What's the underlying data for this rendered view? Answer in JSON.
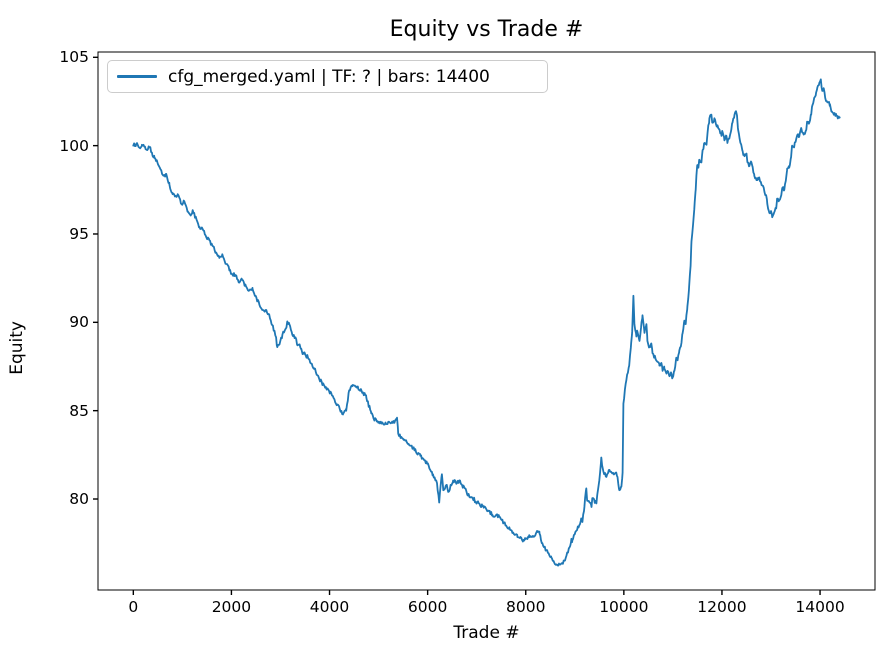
{
  "figure": {
    "background": "#ffffff",
    "text_color": "#000000",
    "spine_color": "#000000"
  },
  "chart_data": {
    "type": "line",
    "title": "Equity vs Trade #",
    "xlabel": "Trade #",
    "ylabel": "Equity",
    "grid": false,
    "xlim": [
      -720,
      15120
    ],
    "ylim": [
      74.85,
      105.3
    ],
    "xticks": [
      0,
      2000,
      4000,
      6000,
      8000,
      10000,
      12000,
      14000
    ],
    "yticks": [
      105,
      100,
      95,
      90,
      85,
      80
    ],
    "legend": {
      "position": "upper left",
      "entries": [
        {
          "label": "cfg_merged.yaml | TF: ? | bars: 14400",
          "color": "#1f77b4"
        }
      ]
    },
    "series": [
      {
        "name": "cfg_merged.yaml | TF: ? | bars: 14400",
        "color": "#1f77b4",
        "x_start": 0,
        "x_end": 14400,
        "equity_start": 100.0,
        "equity_end": 101.6,
        "equity_min": 76.25,
        "equity_max": 103.75,
        "points": [
          [
            0,
            100.0
          ],
          [
            60,
            100.1
          ],
          [
            140,
            99.85
          ],
          [
            175,
            100.05
          ],
          [
            250,
            99.8
          ],
          [
            330,
            99.9
          ],
          [
            430,
            99.3
          ],
          [
            490,
            99.05
          ],
          [
            570,
            98.6
          ],
          [
            615,
            98.3
          ],
          [
            670,
            98.4
          ],
          [
            735,
            97.8
          ],
          [
            800,
            97.25
          ],
          [
            880,
            97.1
          ],
          [
            905,
            97.25
          ],
          [
            980,
            96.7
          ],
          [
            1040,
            96.85
          ],
          [
            1105,
            96.3
          ],
          [
            1180,
            96.1
          ],
          [
            1210,
            96.35
          ],
          [
            1290,
            95.8
          ],
          [
            1350,
            95.4
          ],
          [
            1410,
            95.3
          ],
          [
            1490,
            94.8
          ],
          [
            1550,
            94.65
          ],
          [
            1610,
            94.35
          ],
          [
            1690,
            93.95
          ],
          [
            1755,
            93.7
          ],
          [
            1815,
            93.85
          ],
          [
            1895,
            93.3
          ],
          [
            1960,
            93.0
          ],
          [
            2020,
            92.7
          ],
          [
            2100,
            92.65
          ],
          [
            2160,
            92.25
          ],
          [
            2220,
            92.4
          ],
          [
            2305,
            92.0
          ],
          [
            2365,
            91.8
          ],
          [
            2430,
            91.9
          ],
          [
            2510,
            91.4
          ],
          [
            2570,
            91.0
          ],
          [
            2630,
            90.7
          ],
          [
            2710,
            90.7
          ],
          [
            2770,
            90.45
          ],
          [
            2830,
            89.85
          ],
          [
            2910,
            89.15
          ],
          [
            2935,
            88.6
          ],
          [
            2980,
            88.75
          ],
          [
            3040,
            89.3
          ],
          [
            3120,
            89.7
          ],
          [
            3140,
            90.05
          ],
          [
            3180,
            89.9
          ],
          [
            3240,
            89.3
          ],
          [
            3320,
            89.05
          ],
          [
            3345,
            88.7
          ],
          [
            3390,
            88.75
          ],
          [
            3425,
            88.5
          ],
          [
            3450,
            88.2
          ],
          [
            3490,
            88.3
          ],
          [
            3530,
            88.0
          ],
          [
            3550,
            88.1
          ],
          [
            3590,
            87.9
          ],
          [
            3690,
            87.4
          ],
          [
            3790,
            86.8
          ],
          [
            3855,
            86.55
          ],
          [
            3910,
            86.3
          ],
          [
            4035,
            86.0
          ],
          [
            4130,
            85.4
          ],
          [
            4275,
            84.85
          ],
          [
            4340,
            85.0
          ],
          [
            4400,
            86.15
          ],
          [
            4470,
            86.45
          ],
          [
            4560,
            86.3
          ],
          [
            4650,
            86.15
          ],
          [
            4750,
            85.75
          ],
          [
            4850,
            84.85
          ],
          [
            4915,
            84.5
          ],
          [
            5030,
            84.35
          ],
          [
            5150,
            84.25
          ],
          [
            5290,
            84.3
          ],
          [
            5375,
            84.6
          ],
          [
            5400,
            83.7
          ],
          [
            5480,
            83.45
          ],
          [
            5580,
            83.2
          ],
          [
            5700,
            82.9
          ],
          [
            5850,
            82.45
          ],
          [
            5990,
            82.0
          ],
          [
            6110,
            81.4
          ],
          [
            6190,
            80.9
          ],
          [
            6235,
            79.8
          ],
          [
            6290,
            81.4
          ],
          [
            6320,
            80.5
          ],
          [
            6390,
            80.8
          ],
          [
            6420,
            80.4
          ],
          [
            6520,
            81.05
          ],
          [
            6600,
            80.9
          ],
          [
            6660,
            81.05
          ],
          [
            6700,
            80.8
          ],
          [
            6760,
            80.6
          ],
          [
            6820,
            80.2
          ],
          [
            6900,
            80.1
          ],
          [
            7010,
            79.8
          ],
          [
            7110,
            79.6
          ],
          [
            7200,
            79.4
          ],
          [
            7320,
            79.1
          ],
          [
            7460,
            79.0
          ],
          [
            7600,
            78.5
          ],
          [
            7665,
            78.4
          ],
          [
            7830,
            77.85
          ],
          [
            7970,
            77.65
          ],
          [
            8070,
            77.95
          ],
          [
            8130,
            77.85
          ],
          [
            8215,
            78.1
          ],
          [
            8280,
            78.05
          ],
          [
            8340,
            77.5
          ],
          [
            8420,
            77.1
          ],
          [
            8520,
            76.7
          ],
          [
            8580,
            76.4
          ],
          [
            8645,
            76.25
          ],
          [
            8725,
            76.35
          ],
          [
            8785,
            76.5
          ],
          [
            8830,
            76.8
          ],
          [
            8890,
            77.25
          ],
          [
            8930,
            77.75
          ],
          [
            8950,
            77.65
          ],
          [
            9030,
            78.2
          ],
          [
            9090,
            78.5
          ],
          [
            9130,
            78.9
          ],
          [
            9155,
            78.7
          ],
          [
            9195,
            79.55
          ],
          [
            9235,
            80.6
          ],
          [
            9255,
            79.9
          ],
          [
            9300,
            79.8
          ],
          [
            9340,
            79.55
          ],
          [
            9360,
            80.05
          ],
          [
            9440,
            79.75
          ],
          [
            9460,
            80.3
          ],
          [
            9500,
            81.05
          ],
          [
            9540,
            82.35
          ],
          [
            9565,
            81.8
          ],
          [
            9600,
            81.45
          ],
          [
            9645,
            81.25
          ],
          [
            9705,
            81.65
          ],
          [
            9765,
            81.45
          ],
          [
            9845,
            81.5
          ],
          [
            9870,
            81.25
          ],
          [
            9910,
            80.5
          ],
          [
            9950,
            80.7
          ],
          [
            9975,
            81.5
          ],
          [
            9990,
            85.4
          ],
          [
            10050,
            86.7
          ],
          [
            10110,
            87.55
          ],
          [
            10150,
            88.85
          ],
          [
            10170,
            89.5
          ],
          [
            10195,
            91.5
          ],
          [
            10215,
            89.9
          ],
          [
            10255,
            89.2
          ],
          [
            10275,
            89.5
          ],
          [
            10320,
            88.95
          ],
          [
            10360,
            90.0
          ],
          [
            10380,
            90.4
          ],
          [
            10420,
            89.4
          ],
          [
            10460,
            89.9
          ],
          [
            10480,
            88.95
          ],
          [
            10520,
            88.6
          ],
          [
            10560,
            88.8
          ],
          [
            10585,
            88.25
          ],
          [
            10660,
            87.85
          ],
          [
            10725,
            87.55
          ],
          [
            10765,
            87.7
          ],
          [
            10790,
            87.25
          ],
          [
            10825,
            87.4
          ],
          [
            10870,
            87.1
          ],
          [
            10890,
            87.25
          ],
          [
            10930,
            86.95
          ],
          [
            10970,
            87.1
          ],
          [
            10990,
            86.85
          ],
          [
            11030,
            87.25
          ],
          [
            11070,
            88.0
          ],
          [
            11095,
            87.85
          ],
          [
            11130,
            88.4
          ],
          [
            11175,
            88.85
          ],
          [
            11195,
            89.35
          ],
          [
            11235,
            90.1
          ],
          [
            11260,
            89.9
          ],
          [
            11295,
            90.9
          ],
          [
            11330,
            92.0
          ],
          [
            11360,
            93.2
          ],
          [
            11380,
            94.6
          ],
          [
            11420,
            95.85
          ],
          [
            11445,
            96.8
          ],
          [
            11465,
            97.5
          ],
          [
            11480,
            98.3
          ],
          [
            11500,
            98.9
          ],
          [
            11520,
            98.75
          ],
          [
            11540,
            99.2
          ],
          [
            11580,
            99.05
          ],
          [
            11605,
            99.75
          ],
          [
            11645,
            100.15
          ],
          [
            11685,
            100.05
          ],
          [
            11705,
            100.7
          ],
          [
            11745,
            101.55
          ],
          [
            11785,
            101.75
          ],
          [
            11805,
            101.3
          ],
          [
            11845,
            101.55
          ],
          [
            11890,
            101.1
          ],
          [
            11910,
            101.15
          ],
          [
            11950,
            100.9
          ],
          [
            11990,
            100.55
          ],
          [
            12010,
            100.8
          ],
          [
            12050,
            100.3
          ],
          [
            12090,
            100.55
          ],
          [
            12110,
            100.15
          ],
          [
            12150,
            100.4
          ],
          [
            12190,
            100.9
          ],
          [
            12215,
            101.3
          ],
          [
            12255,
            101.75
          ],
          [
            12290,
            101.9
          ],
          [
            12310,
            101.55
          ],
          [
            12330,
            100.9
          ],
          [
            12360,
            100.4
          ],
          [
            12400,
            99.95
          ],
          [
            12420,
            99.7
          ],
          [
            12460,
            99.4
          ],
          [
            12500,
            99.55
          ],
          [
            12520,
            99.05
          ],
          [
            12560,
            98.85
          ],
          [
            12600,
            99.05
          ],
          [
            12625,
            98.8
          ],
          [
            12660,
            98.3
          ],
          [
            12705,
            98.05
          ],
          [
            12760,
            98.2
          ],
          [
            12820,
            97.75
          ],
          [
            12900,
            97.2
          ],
          [
            12925,
            96.7
          ],
          [
            12965,
            96.2
          ],
          [
            13000,
            96.3
          ],
          [
            13025,
            95.95
          ],
          [
            13060,
            96.2
          ],
          [
            13105,
            96.45
          ],
          [
            13125,
            97.0
          ],
          [
            13165,
            96.9
          ],
          [
            13210,
            97.2
          ],
          [
            13230,
            97.6
          ],
          [
            13270,
            97.5
          ],
          [
            13310,
            98.2
          ],
          [
            13330,
            98.7
          ],
          [
            13370,
            98.75
          ],
          [
            13410,
            99.35
          ],
          [
            13430,
            100.0
          ],
          [
            13470,
            99.9
          ],
          [
            13515,
            100.4
          ],
          [
            13535,
            100.6
          ],
          [
            13575,
            100.5
          ],
          [
            13615,
            101.0
          ],
          [
            13635,
            100.75
          ],
          [
            13675,
            100.7
          ],
          [
            13720,
            100.9
          ],
          [
            13740,
            101.35
          ],
          [
            13780,
            101.3
          ],
          [
            13820,
            101.75
          ],
          [
            13845,
            102.3
          ],
          [
            13880,
            102.7
          ],
          [
            13920,
            103.0
          ],
          [
            13945,
            103.3
          ],
          [
            13985,
            103.55
          ],
          [
            14015,
            103.75
          ],
          [
            14045,
            103.1
          ],
          [
            14075,
            103.25
          ],
          [
            14105,
            102.7
          ],
          [
            14150,
            102.45
          ],
          [
            14200,
            102.35
          ],
          [
            14235,
            101.95
          ],
          [
            14280,
            101.75
          ],
          [
            14330,
            101.7
          ],
          [
            14365,
            101.55
          ],
          [
            14400,
            101.6
          ]
        ]
      }
    ]
  }
}
